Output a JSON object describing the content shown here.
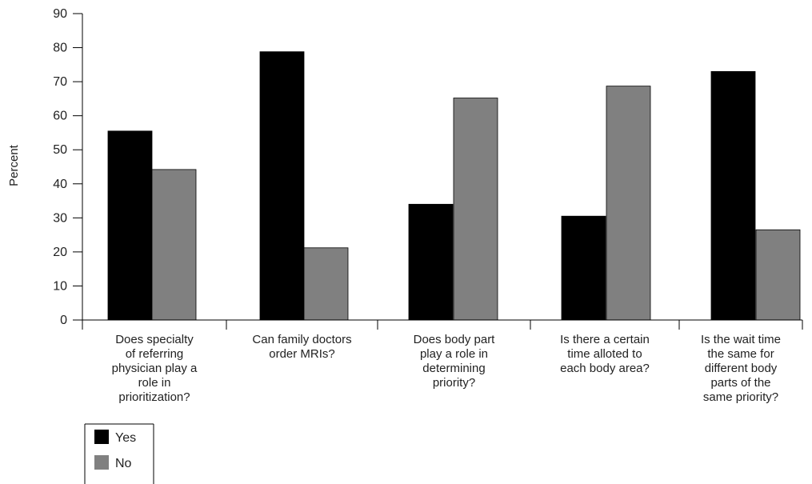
{
  "chart_data": {
    "type": "bar",
    "title": "",
    "xlabel": "",
    "ylabel": "Percent",
    "ylim": [
      0,
      90
    ],
    "yticks": [
      "0",
      "10",
      "20",
      "30",
      "40",
      "50",
      "60",
      "70",
      "80",
      "90"
    ],
    "grid": false,
    "legend_position": "bottom-left",
    "categories": [
      [
        "Does specialty",
        "of referring",
        "physician play a",
        "role in",
        "prioritization?"
      ],
      [
        "Can family doctors",
        "order MRIs?"
      ],
      [
        "Does body part",
        "play a role in",
        "determining",
        "priority?"
      ],
      [
        "Is there a certain",
        "time alloted to",
        "each body area?"
      ],
      [
        "Is the wait time",
        "the same for",
        "different body",
        "parts of the",
        "same priority?"
      ]
    ],
    "series": [
      {
        "name": "Yes",
        "color": "#000000",
        "values": [
          55.5,
          78.8,
          34.0,
          30.5,
          73.0
        ]
      },
      {
        "name": "No",
        "color": "#808080",
        "values": [
          44.2,
          21.2,
          65.2,
          68.7,
          26.5
        ]
      }
    ]
  }
}
